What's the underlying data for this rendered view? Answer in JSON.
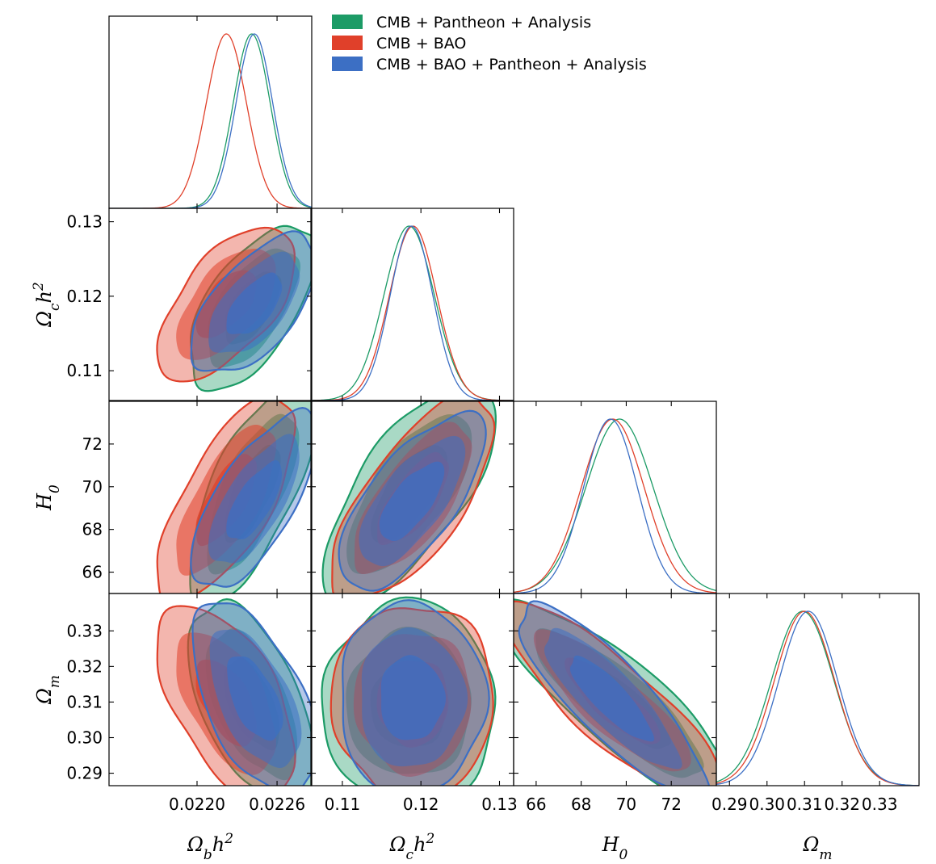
{
  "chart_data": {
    "type": "triangle-corner",
    "parameters": [
      {
        "key": "obh2",
        "label": "Ω_b h²",
        "label_main": "Ω",
        "label_sub": "b",
        "label_tail": "h",
        "label_sup": "2",
        "range": [
          0.02134,
          0.02286
        ],
        "ticks": [
          0.022,
          0.0226
        ],
        "tick_labels": [
          "0.0220",
          "0.0226"
        ]
      },
      {
        "key": "och2",
        "label": "Ω_c h²",
        "label_main": "Ω",
        "label_sub": "c",
        "label_tail": "h",
        "label_sup": "2",
        "range": [
          0.106,
          0.1318
        ],
        "ticks": [
          0.11,
          0.12,
          0.13
        ],
        "tick_labels": [
          "0.11",
          "0.12",
          "0.13"
        ]
      },
      {
        "key": "H0",
        "label": "H_0",
        "label_main": "H",
        "label_sub": "0",
        "label_tail": "",
        "label_sup": "",
        "range": [
          65.0,
          74.0
        ],
        "ticks": [
          66,
          68,
          70,
          72
        ],
        "tick_labels": [
          "66",
          "68",
          "70",
          "72"
        ]
      },
      {
        "key": "Om",
        "label": "Ω_m",
        "label_main": "Ω",
        "label_sub": "m",
        "label_tail": "",
        "label_sup": "",
        "range": [
          0.2865,
          0.3405
        ],
        "ticks": [
          0.29,
          0.3,
          0.31,
          0.32,
          0.33
        ],
        "tick_labels": [
          "0.29",
          "0.30",
          "0.31",
          "0.32",
          "0.33"
        ]
      }
    ],
    "series": [
      {
        "name": "CMB + Pantheon + Analysis",
        "color": "#1c9b66",
        "mean": [
          0.02241,
          0.1185,
          69.7,
          0.3095
        ],
        "sigma": [
          0.000138,
          0.0032,
          1.5,
          0.0083
        ]
      },
      {
        "name": "CMB + BAO",
        "color": "#e0402a",
        "mean": [
          0.02222,
          0.119,
          69.4,
          0.31
        ],
        "sigma": [
          0.00015,
          0.003,
          1.4,
          0.008
        ]
      },
      {
        "name": "CMB + BAO + Pantheon + Analysis",
        "color": "#3c6fc4",
        "mean": [
          0.02243,
          0.1188,
          69.3,
          0.311
        ],
        "sigma": [
          0.000137,
          0.0027,
          1.2,
          0.0078
        ]
      }
    ],
    "correlations": {
      "1-0": 0.6,
      "2-0": 0.7,
      "2-1": 0.7,
      "3-0": -0.55,
      "3-1": 0.0,
      "3-2": -0.85
    },
    "contour_levels": [
      "1σ",
      "2σ",
      "3σ"
    ],
    "legend_position": "top-right"
  }
}
